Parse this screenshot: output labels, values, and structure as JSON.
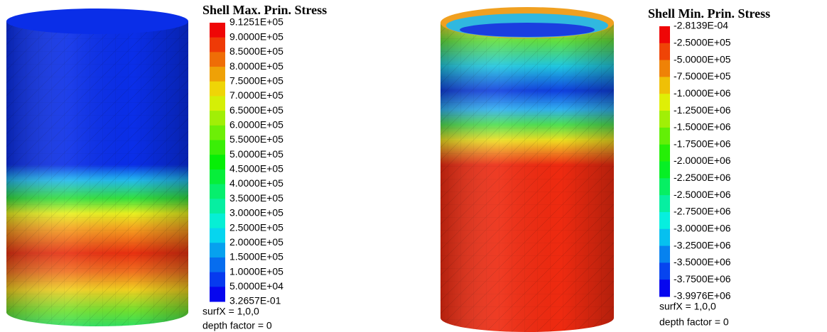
{
  "panels": [
    {
      "title": "Shell Max. Prin. Stress",
      "legend": [
        "9.1251E+05",
        "9.0000E+05",
        "8.5000E+05",
        "8.0000E+05",
        "7.5000E+05",
        "7.0000E+05",
        "6.5000E+05",
        "6.0000E+05",
        "5.5000E+05",
        "5.0000E+05",
        "4.5000E+05",
        "4.0000E+05",
        "3.5000E+05",
        "3.0000E+05",
        "2.5000E+05",
        "2.0000E+05",
        "1.5000E+05",
        "1.0000E+05",
        "5.0000E+04",
        "3.2657E-01"
      ],
      "notes": [
        "surfX = 1,0,0",
        "depth factor = 0"
      ]
    },
    {
      "title": "Shell Min. Prin. Stress",
      "legend": [
        "-2.8139E-04",
        "-2.5000E+05",
        "-5.0000E+05",
        "-7.5000E+05",
        "-1.0000E+06",
        "-1.2500E+06",
        "-1.5000E+06",
        "-1.7500E+06",
        "-2.0000E+06",
        "-2.2500E+06",
        "-2.5000E+06",
        "-2.7500E+06",
        "-3.0000E+06",
        "-3.2500E+06",
        "-3.5000E+06",
        "-3.7500E+06",
        "-3.9976E+06"
      ],
      "notes": [
        "surfX = 1,0,0",
        "depth factor = 0"
      ]
    }
  ]
}
